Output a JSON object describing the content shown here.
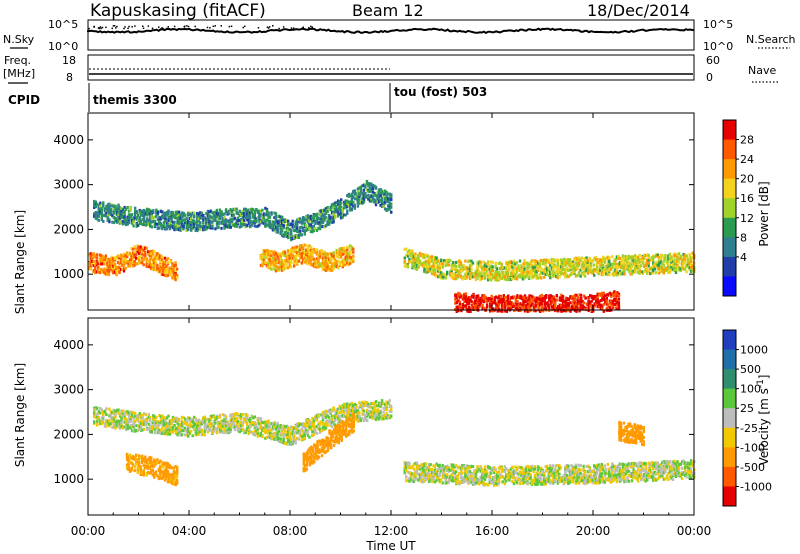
{
  "header": {
    "title": "Kapuskasing (fitACF)",
    "beam": "Beam 12",
    "date": "18/Dec/2014"
  },
  "noise_panel": {
    "left_label": "N.Sky",
    "left_ticks": [
      "10^5",
      "10^0"
    ],
    "right_label": "N.Search",
    "right_ticks": [
      "10^5",
      "10^0"
    ]
  },
  "freq_panel": {
    "left_label_1": "Freq.",
    "left_label_2": "[MHz]",
    "left_ticks": [
      "18",
      "8"
    ],
    "right_label": "Nave",
    "right_ticks": [
      "60",
      "0"
    ]
  },
  "cpid_panel": {
    "label": "CPID",
    "modes": [
      {
        "name": "themis 3300",
        "start_hour": 0
      },
      {
        "name": "tou (fost) 503",
        "start_hour": 12
      }
    ]
  },
  "time_axis": {
    "label": "Time UT",
    "ticks": [
      "00:00",
      "04:00",
      "08:00",
      "12:00",
      "16:00",
      "20:00",
      "00:00"
    ],
    "range_hours": [
      0,
      24
    ]
  },
  "power_colorbar": {
    "label": "Power [dB]",
    "ticks": [
      "28",
      "24",
      "20",
      "16",
      "12",
      "8",
      "4"
    ],
    "colors": [
      "#e60000",
      "#ff5a00",
      "#ff9a00",
      "#f5d21e",
      "#a0d228",
      "#2a9b4f",
      "#2f7f8f",
      "#213ea8",
      "#0a0aff"
    ]
  },
  "velocity_colorbar": {
    "label": "Velocity [m s^-1]",
    "label_main": "Velocity [m s",
    "label_sup": "-1",
    "label_end": "]",
    "ticks": [
      "1000",
      "500",
      "100",
      "25",
      "-25",
      "-100",
      "-500",
      "-1000"
    ],
    "colors": [
      "#1f3fbf",
      "#1f6fa8",
      "#2e8e6e",
      "#5ac83a",
      "#bdbdbd",
      "#f2c800",
      "#ff9a00",
      "#ff5a00",
      "#e60000"
    ]
  },
  "chart_data": [
    {
      "type": "heatmap",
      "title": "Power",
      "xlabel": "Time UT",
      "ylabel": "Slant Range [km]",
      "xlim_hours": [
        0,
        24
      ],
      "ylim_km": [
        200,
        4600
      ],
      "yticks": [
        1000,
        2000,
        3000,
        4000
      ],
      "colorbar_label": "Power [dB]",
      "colorbar_range_db": [
        0,
        32
      ],
      "scatter_features": [
        {
          "name": "main arc",
          "time_hours": [
            0.2,
            2,
            4,
            6,
            7,
            8,
            9,
            10,
            11,
            12
          ],
          "range_km": [
            2450,
            2300,
            2200,
            2300,
            2300,
            2000,
            2200,
            2500,
            2900,
            2600
          ],
          "power_db": 10
        },
        {
          "name": "near band early",
          "time_hours": [
            0,
            1,
            2,
            3,
            3.5
          ],
          "range_km": [
            1300,
            1200,
            1500,
            1200,
            1100
          ],
          "power_db": 24
        },
        {
          "name": "near band morning",
          "time_hours": [
            6.8,
            7.5,
            8.5,
            9.5,
            10.5
          ],
          "range_km": [
            1400,
            1300,
            1500,
            1300,
            1500
          ],
          "power_db": 22
        },
        {
          "name": "evening layer",
          "time_hours": [
            12.5,
            14,
            16,
            18,
            20,
            22,
            24
          ],
          "range_km": [
            1400,
            1150,
            1100,
            1150,
            1200,
            1250,
            1300
          ],
          "power_db": 18
        },
        {
          "name": "near-range strong echo",
          "time_hours": [
            14.5,
            16,
            18,
            20,
            21
          ],
          "range_km": [
            400,
            350,
            350,
            380,
            450
          ],
          "power_db": 30
        }
      ]
    },
    {
      "type": "heatmap",
      "title": "Velocity",
      "xlabel": "Time UT",
      "ylabel": "Slant Range [km]",
      "xlim_hours": [
        0,
        24
      ],
      "ylim_km": [
        200,
        4600
      ],
      "yticks": [
        1000,
        2000,
        3000,
        4000
      ],
      "colorbar_label": "Velocity [m s^-1]",
      "colorbar_levels": [
        -1000,
        -500,
        -100,
        -25,
        25,
        100,
        500,
        1000
      ],
      "scatter_features": [
        {
          "name": "ground scatter arc",
          "time_hours": [
            0.2,
            2,
            4,
            6,
            8,
            10,
            12
          ],
          "range_km": [
            2450,
            2300,
            2200,
            2300,
            2000,
            2500,
            2600
          ],
          "velocity_ms": 0
        },
        {
          "name": "westward flow 02-04 UT",
          "time_hours": [
            1.5,
            2.5,
            3.5
          ],
          "range_km": [
            1400,
            1300,
            1100
          ],
          "velocity_ms": -150
        },
        {
          "name": "westward flow 09-11 UT",
          "time_hours": [
            8.5,
            9.5,
            10.5
          ],
          "range_km": [
            1400,
            1900,
            2300
          ],
          "velocity_ms": -300
        },
        {
          "name": "evening ground scatter",
          "time_hours": [
            12.5,
            16,
            20,
            24
          ],
          "range_km": [
            1200,
            1100,
            1150,
            1250
          ],
          "velocity_ms": 0
        },
        {
          "name": "late evening flow",
          "time_hours": [
            21,
            22
          ],
          "range_km": [
            2100,
            2000
          ],
          "velocity_ms": -200
        }
      ]
    }
  ]
}
